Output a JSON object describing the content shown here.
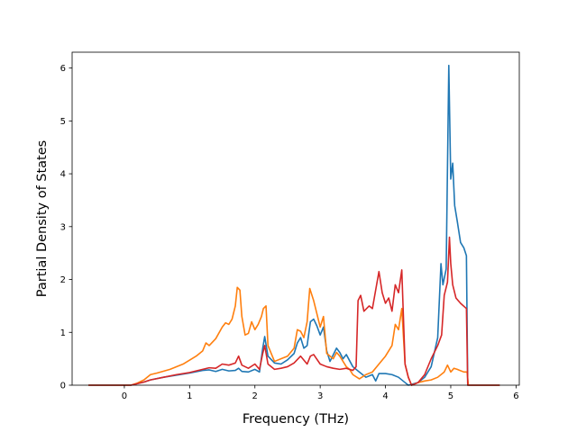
{
  "chart_data": {
    "type": "line",
    "xlabel": "Frequency (THz)",
    "ylabel": "Partial Density of States",
    "xlim": [
      -0.8,
      6.05
    ],
    "ylim": [
      0,
      6.3
    ],
    "xticks": [
      0,
      1,
      2,
      3,
      4,
      5,
      6
    ],
    "yticks": [
      0,
      1,
      2,
      3,
      4,
      5,
      6
    ],
    "grid": false,
    "series": [
      {
        "color": "#1f77b4",
        "points": [
          [
            -0.55,
            0
          ],
          [
            0.1,
            0
          ],
          [
            0.2,
            0.03
          ],
          [
            0.3,
            0.06
          ],
          [
            0.4,
            0.1
          ],
          [
            0.6,
            0.15
          ],
          [
            0.8,
            0.19
          ],
          [
            1.0,
            0.23
          ],
          [
            1.2,
            0.28
          ],
          [
            1.3,
            0.29
          ],
          [
            1.4,
            0.26
          ],
          [
            1.5,
            0.3
          ],
          [
            1.6,
            0.27
          ],
          [
            1.7,
            0.28
          ],
          [
            1.75,
            0.32
          ],
          [
            1.8,
            0.26
          ],
          [
            1.9,
            0.25
          ],
          [
            2.0,
            0.3
          ],
          [
            2.07,
            0.25
          ],
          [
            2.12,
            0.7
          ],
          [
            2.15,
            0.92
          ],
          [
            2.2,
            0.55
          ],
          [
            2.3,
            0.42
          ],
          [
            2.4,
            0.4
          ],
          [
            2.5,
            0.48
          ],
          [
            2.6,
            0.6
          ],
          [
            2.65,
            0.8
          ],
          [
            2.7,
            0.9
          ],
          [
            2.75,
            0.7
          ],
          [
            2.8,
            0.75
          ],
          [
            2.85,
            1.2
          ],
          [
            2.9,
            1.25
          ],
          [
            2.95,
            1.12
          ],
          [
            3.0,
            0.95
          ],
          [
            3.05,
            1.1
          ],
          [
            3.1,
            0.65
          ],
          [
            3.15,
            0.45
          ],
          [
            3.25,
            0.7
          ],
          [
            3.3,
            0.62
          ],
          [
            3.35,
            0.5
          ],
          [
            3.4,
            0.58
          ],
          [
            3.5,
            0.35
          ],
          [
            3.6,
            0.25
          ],
          [
            3.7,
            0.15
          ],
          [
            3.8,
            0.2
          ],
          [
            3.85,
            0.08
          ],
          [
            3.9,
            0.22
          ],
          [
            4.0,
            0.22
          ],
          [
            4.1,
            0.2
          ],
          [
            4.2,
            0.15
          ],
          [
            4.3,
            0.05
          ],
          [
            4.35,
            0.0
          ],
          [
            4.5,
            0.05
          ],
          [
            4.6,
            0.15
          ],
          [
            4.7,
            0.35
          ],
          [
            4.8,
            0.9
          ],
          [
            4.85,
            2.3
          ],
          [
            4.88,
            1.9
          ],
          [
            4.93,
            2.2
          ],
          [
            4.97,
            6.05
          ],
          [
            5.0,
            3.9
          ],
          [
            5.03,
            4.2
          ],
          [
            5.06,
            3.4
          ],
          [
            5.1,
            3.1
          ],
          [
            5.15,
            2.7
          ],
          [
            5.2,
            2.6
          ],
          [
            5.24,
            2.45
          ],
          [
            5.26,
            0.0
          ],
          [
            5.4,
            0
          ],
          [
            5.75,
            0
          ]
        ]
      },
      {
        "color": "#ff7f0e",
        "points": [
          [
            -0.55,
            0
          ],
          [
            0.1,
            0
          ],
          [
            0.2,
            0.04
          ],
          [
            0.3,
            0.1
          ],
          [
            0.4,
            0.2
          ],
          [
            0.5,
            0.23
          ],
          [
            0.7,
            0.3
          ],
          [
            0.9,
            0.4
          ],
          [
            1.1,
            0.55
          ],
          [
            1.2,
            0.65
          ],
          [
            1.25,
            0.8
          ],
          [
            1.3,
            0.75
          ],
          [
            1.4,
            0.88
          ],
          [
            1.5,
            1.1
          ],
          [
            1.55,
            1.18
          ],
          [
            1.6,
            1.15
          ],
          [
            1.65,
            1.25
          ],
          [
            1.7,
            1.5
          ],
          [
            1.73,
            1.85
          ],
          [
            1.77,
            1.8
          ],
          [
            1.8,
            1.3
          ],
          [
            1.85,
            0.95
          ],
          [
            1.9,
            0.98
          ],
          [
            1.95,
            1.2
          ],
          [
            2.0,
            1.05
          ],
          [
            2.05,
            1.15
          ],
          [
            2.1,
            1.3
          ],
          [
            2.13,
            1.45
          ],
          [
            2.17,
            1.5
          ],
          [
            2.2,
            0.75
          ],
          [
            2.3,
            0.45
          ],
          [
            2.4,
            0.5
          ],
          [
            2.5,
            0.55
          ],
          [
            2.6,
            0.7
          ],
          [
            2.65,
            1.05
          ],
          [
            2.7,
            1.02
          ],
          [
            2.75,
            0.9
          ],
          [
            2.8,
            1.2
          ],
          [
            2.84,
            1.83
          ],
          [
            2.9,
            1.6
          ],
          [
            2.95,
            1.35
          ],
          [
            3.0,
            1.1
          ],
          [
            3.05,
            1.3
          ],
          [
            3.1,
            0.6
          ],
          [
            3.2,
            0.5
          ],
          [
            3.25,
            0.62
          ],
          [
            3.3,
            0.55
          ],
          [
            3.4,
            0.35
          ],
          [
            3.45,
            0.3
          ],
          [
            3.5,
            0.2
          ],
          [
            3.6,
            0.12
          ],
          [
            3.7,
            0.2
          ],
          [
            3.8,
            0.25
          ],
          [
            3.9,
            0.4
          ],
          [
            4.0,
            0.55
          ],
          [
            4.1,
            0.75
          ],
          [
            4.15,
            1.15
          ],
          [
            4.2,
            1.05
          ],
          [
            4.25,
            1.45
          ],
          [
            4.3,
            0.4
          ],
          [
            4.35,
            0.15
          ],
          [
            4.4,
            0.0
          ],
          [
            4.5,
            0.05
          ],
          [
            4.6,
            0.08
          ],
          [
            4.7,
            0.1
          ],
          [
            4.8,
            0.15
          ],
          [
            4.9,
            0.25
          ],
          [
            4.95,
            0.38
          ],
          [
            5.0,
            0.25
          ],
          [
            5.05,
            0.32
          ],
          [
            5.1,
            0.3
          ],
          [
            5.2,
            0.25
          ],
          [
            5.25,
            0.25
          ],
          [
            5.27,
            0.0
          ],
          [
            5.4,
            0
          ],
          [
            5.75,
            0
          ]
        ]
      },
      {
        "color": "#d62728",
        "points": [
          [
            -0.55,
            0
          ],
          [
            0.1,
            0
          ],
          [
            0.2,
            0.03
          ],
          [
            0.3,
            0.06
          ],
          [
            0.4,
            0.1
          ],
          [
            0.6,
            0.15
          ],
          [
            0.8,
            0.2
          ],
          [
            1.0,
            0.24
          ],
          [
            1.2,
            0.3
          ],
          [
            1.3,
            0.33
          ],
          [
            1.4,
            0.32
          ],
          [
            1.5,
            0.4
          ],
          [
            1.6,
            0.38
          ],
          [
            1.7,
            0.42
          ],
          [
            1.75,
            0.55
          ],
          [
            1.8,
            0.38
          ],
          [
            1.9,
            0.32
          ],
          [
            2.0,
            0.4
          ],
          [
            2.07,
            0.3
          ],
          [
            2.12,
            0.6
          ],
          [
            2.15,
            0.75
          ],
          [
            2.2,
            0.4
          ],
          [
            2.3,
            0.3
          ],
          [
            2.4,
            0.32
          ],
          [
            2.5,
            0.35
          ],
          [
            2.6,
            0.42
          ],
          [
            2.7,
            0.55
          ],
          [
            2.8,
            0.4
          ],
          [
            2.85,
            0.55
          ],
          [
            2.9,
            0.58
          ],
          [
            3.0,
            0.4
          ],
          [
            3.1,
            0.35
          ],
          [
            3.2,
            0.32
          ],
          [
            3.3,
            0.3
          ],
          [
            3.4,
            0.32
          ],
          [
            3.5,
            0.28
          ],
          [
            3.55,
            0.35
          ],
          [
            3.58,
            1.6
          ],
          [
            3.62,
            1.7
          ],
          [
            3.67,
            1.4
          ],
          [
            3.75,
            1.5
          ],
          [
            3.8,
            1.45
          ],
          [
            3.85,
            1.8
          ],
          [
            3.9,
            2.15
          ],
          [
            3.95,
            1.75
          ],
          [
            4.0,
            1.55
          ],
          [
            4.05,
            1.65
          ],
          [
            4.1,
            1.4
          ],
          [
            4.15,
            1.9
          ],
          [
            4.2,
            1.75
          ],
          [
            4.25,
            2.18
          ],
          [
            4.3,
            0.4
          ],
          [
            4.35,
            0.15
          ],
          [
            4.4,
            0.0
          ],
          [
            4.5,
            0.05
          ],
          [
            4.6,
            0.2
          ],
          [
            4.7,
            0.5
          ],
          [
            4.8,
            0.75
          ],
          [
            4.86,
            0.95
          ],
          [
            4.9,
            1.7
          ],
          [
            4.95,
            1.95
          ],
          [
            4.98,
            2.8
          ],
          [
            5.0,
            2.3
          ],
          [
            5.03,
            1.9
          ],
          [
            5.08,
            1.65
          ],
          [
            5.15,
            1.55
          ],
          [
            5.24,
            1.45
          ],
          [
            5.26,
            0.0
          ],
          [
            5.4,
            0
          ],
          [
            5.75,
            0
          ]
        ]
      }
    ]
  }
}
